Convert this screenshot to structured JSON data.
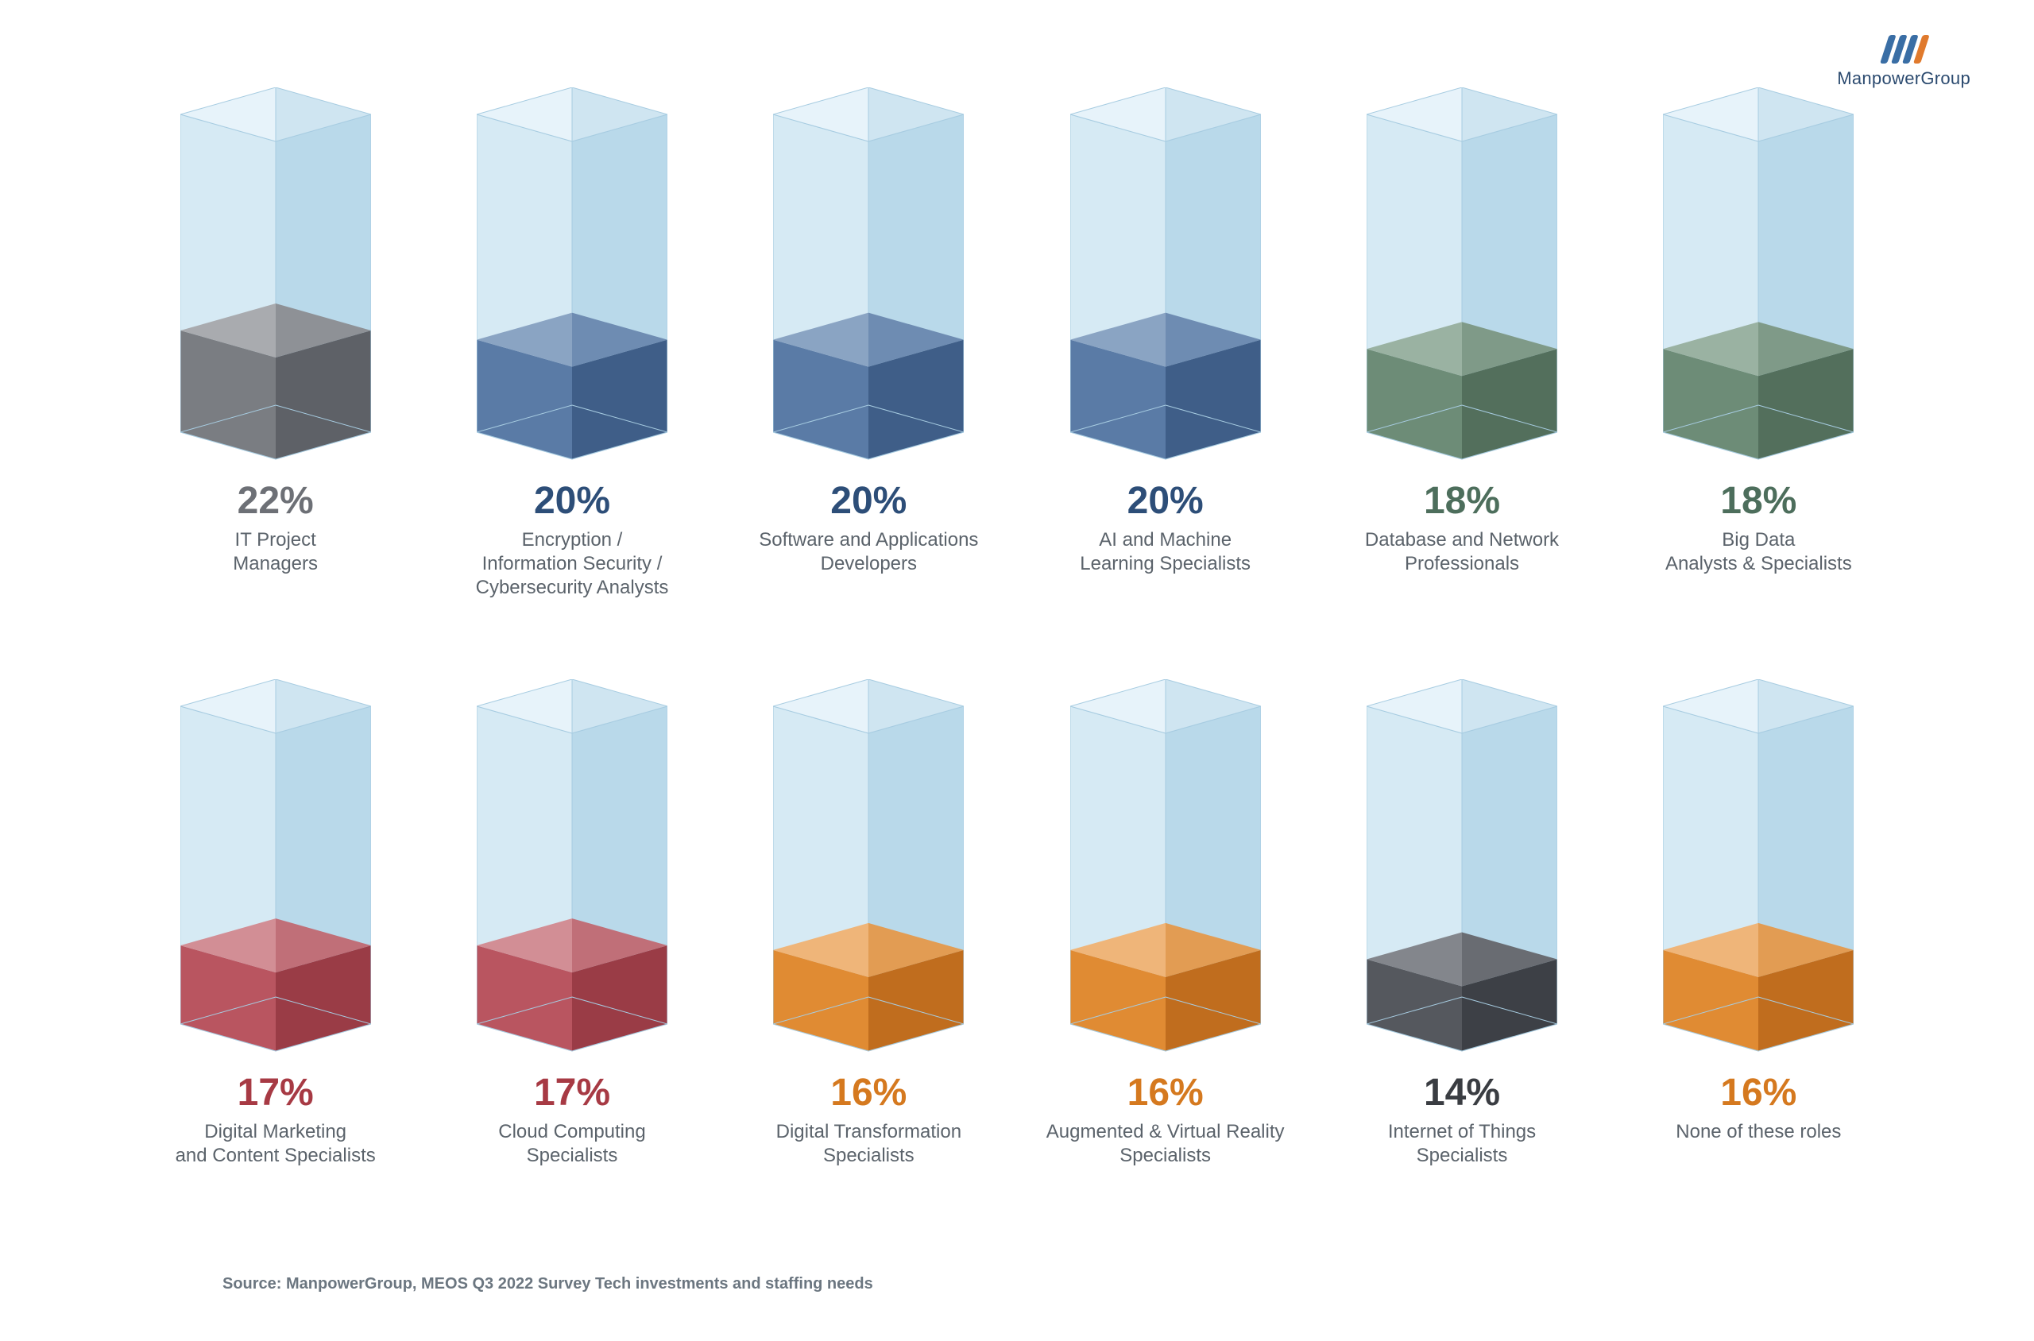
{
  "logo": {
    "text": "ManpowerGroup"
  },
  "source": "Source: ManpowerGroup, MEOS Q3 2022 Survey Tech investments and staffing needs",
  "chart": {
    "type": "bar",
    "columns": 6,
    "bar": {
      "total_height": 400,
      "tube_outer_light": "#d6eaf4",
      "tube_outer_dark": "#b9d9ea",
      "tube_top_light": "#e7f3fa",
      "tube_top_dark": "#cfe5f1",
      "tube_outline": "#a7cce1"
    },
    "items": [
      {
        "value": 22,
        "label": "IT Project\nManagers",
        "text_color": "#6d7076",
        "fill_left": "#7a7d82",
        "fill_right": "#5e6167",
        "top_left": "#a9abaf",
        "top_right": "#8e9196"
      },
      {
        "value": 20,
        "label": "Encryption /\nInformation Security /\nCybersecurity Analysts",
        "text_color": "#2d4e78",
        "fill_left": "#5a7ba6",
        "fill_right": "#3f5e88",
        "top_left": "#8aa4c3",
        "top_right": "#6e8cb2"
      },
      {
        "value": 20,
        "label": "Software and Applications\nDevelopers",
        "text_color": "#2d4e78",
        "fill_left": "#5a7ba6",
        "fill_right": "#3f5e88",
        "top_left": "#8aa4c3",
        "top_right": "#6e8cb2"
      },
      {
        "value": 20,
        "label": "AI and Machine\nLearning Specialists",
        "text_color": "#2d4e78",
        "fill_left": "#5a7ba6",
        "fill_right": "#3f5e88",
        "top_left": "#8aa4c3",
        "top_right": "#6e8cb2"
      },
      {
        "value": 18,
        "label": "Database and Network\nProfessionals",
        "text_color": "#4d6e5c",
        "fill_left": "#6d8c77",
        "fill_right": "#536f5c",
        "top_left": "#9ab2a2",
        "top_right": "#7f9a88"
      },
      {
        "value": 18,
        "label": "Big Data\nAnalysts & Specialists",
        "text_color": "#4d6e5c",
        "fill_left": "#6d8c77",
        "fill_right": "#536f5c",
        "top_left": "#9ab2a2",
        "top_right": "#7f9a88"
      },
      {
        "value": 17,
        "label": "Digital Marketing\nand Content Specialists",
        "text_color": "#a73a44",
        "fill_left": "#b95560",
        "fill_right": "#9a3c46",
        "top_left": "#d28e95",
        "top_right": "#c06f78"
      },
      {
        "value": 17,
        "label": "Cloud Computing\nSpecialists",
        "text_color": "#a73a44",
        "fill_left": "#b95560",
        "fill_right": "#9a3c46",
        "top_left": "#d28e95",
        "top_right": "#c06f78"
      },
      {
        "value": 16,
        "label": "Digital Transformation\nSpecialists",
        "text_color": "#d5791f",
        "fill_left": "#e08b33",
        "fill_right": "#c06d1e",
        "top_left": "#efb579",
        "top_right": "#e29c53"
      },
      {
        "value": 16,
        "label": "Augmented & Virtual Reality\nSpecialists",
        "text_color": "#d5791f",
        "fill_left": "#e08b33",
        "fill_right": "#c06d1e",
        "top_left": "#efb579",
        "top_right": "#e29c53"
      },
      {
        "value": 14,
        "label": "Internet of Things\nSpecialists",
        "text_color": "#3a3d42",
        "fill_left": "#55585e",
        "fill_right": "#3d4046",
        "top_left": "#83868c",
        "top_right": "#696c72"
      },
      {
        "value": 16,
        "label": "None of these roles",
        "text_color": "#d5791f",
        "fill_left": "#e08b33",
        "fill_right": "#c06d1e",
        "top_left": "#efb579",
        "top_right": "#e29c53"
      }
    ]
  }
}
